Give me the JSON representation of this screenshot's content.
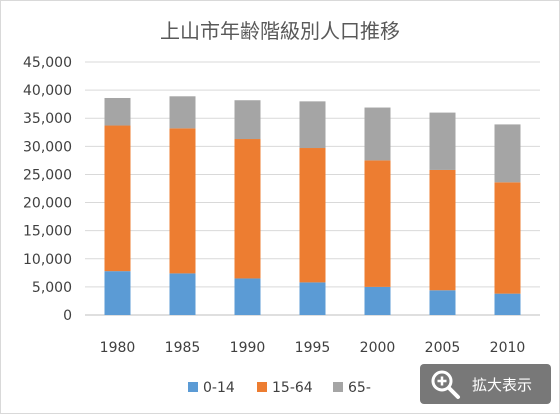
{
  "chart_data": {
    "type": "bar",
    "stacked": true,
    "title": "上山市年齢階級別人口推移",
    "categories": [
      "1980",
      "1985",
      "1990",
      "1995",
      "2000",
      "2005",
      "2010"
    ],
    "series": [
      {
        "name": "0-14",
        "color": "#5b9bd5",
        "values": [
          7800,
          7400,
          6500,
          5800,
          5000,
          4400,
          3800
        ]
      },
      {
        "name": "15-64",
        "color": "#ed7d31",
        "values": [
          25900,
          25800,
          24800,
          23900,
          22500,
          21400,
          19800
        ]
      },
      {
        "name": "65-",
        "color": "#a5a5a5",
        "values": [
          4900,
          5700,
          6900,
          8300,
          9400,
          10200,
          10300
        ]
      }
    ],
    "y_ticks": [
      "0",
      "5,000",
      "10,000",
      "15,000",
      "20,000",
      "25,000",
      "30,000",
      "35,000",
      "40,000",
      "45,000"
    ],
    "ylim": [
      0,
      45000
    ],
    "grid": true,
    "legend": "bottom"
  },
  "zoom_button": {
    "label": "拡大表示",
    "icon": "magnifier-plus-icon"
  }
}
